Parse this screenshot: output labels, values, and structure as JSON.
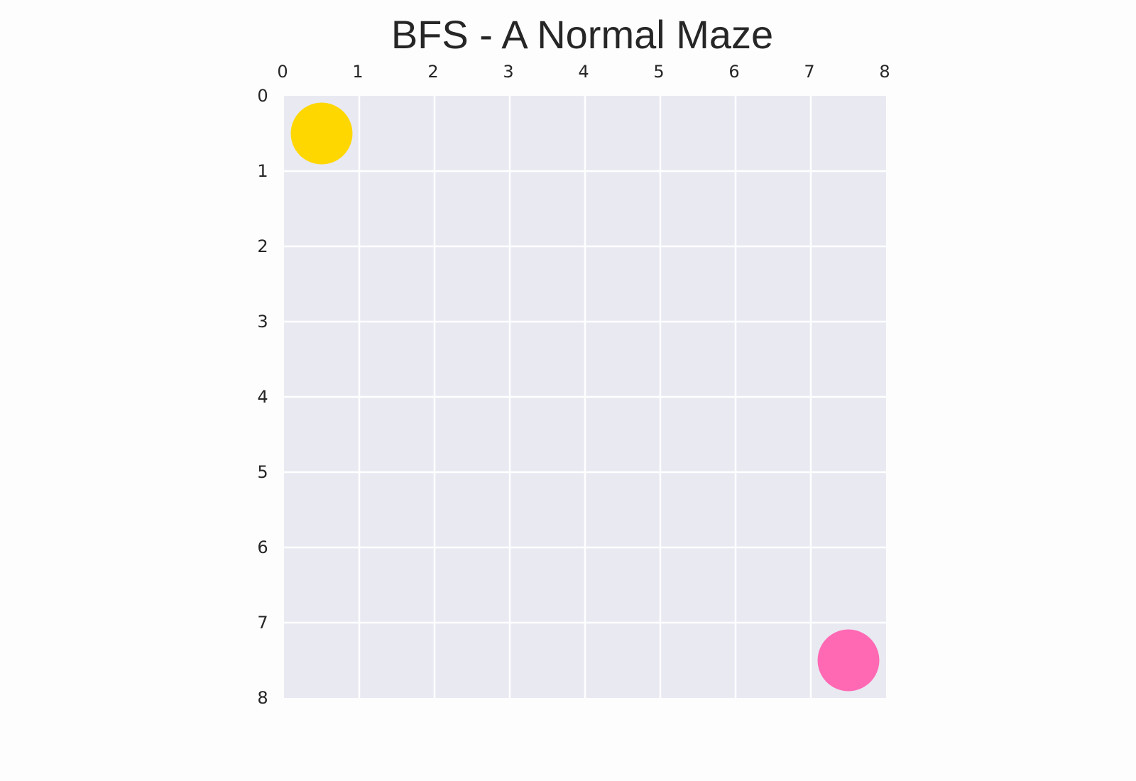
{
  "title": "BFS - A Normal Maze",
  "grid": {
    "rows": 8,
    "cols": 8,
    "x_ticks": [
      "0",
      "1",
      "2",
      "3",
      "4",
      "5",
      "6",
      "7",
      "8"
    ],
    "y_ticks": [
      "0",
      "1",
      "2",
      "3",
      "4",
      "5",
      "6",
      "7",
      "8"
    ],
    "background_color": "#e9e9f2",
    "grid_line_color": "#ffffff"
  },
  "pieces": [
    {
      "name": "start-marker",
      "row": 0,
      "col": 0,
      "color": "#ffd700"
    },
    {
      "name": "goal-marker",
      "row": 7,
      "col": 7,
      "color": "#ff69b4"
    }
  ]
}
